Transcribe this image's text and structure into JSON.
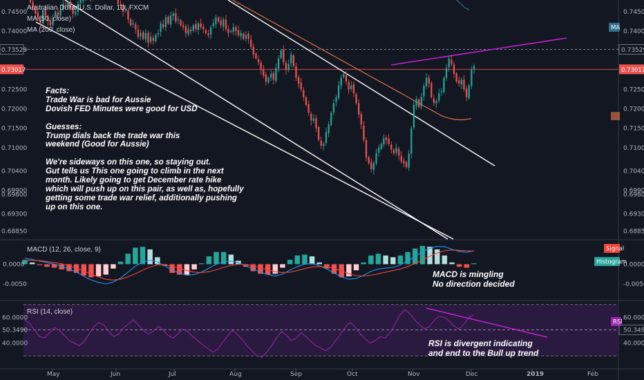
{
  "legend": {
    "title": "Australian Dollar/U.S. Dollar, 1D, FXCM",
    "ma50": "MA (50, close)",
    "ma200": "MA (200, close)"
  },
  "badges": {
    "ma": "MA",
    "signal": "Signal",
    "histogram": "Histogram",
    "rsi": "RSI"
  },
  "colors": {
    "background": "#131722",
    "up": "#26a69a",
    "down": "#ef5350",
    "ma50": "#f2784b",
    "ma200": "#2e6f8e",
    "trend": "#c521d6",
    "macd": "#2196f3",
    "signal": "#f44336",
    "rsi": "#9c27b0",
    "rsi_band": "#2a1a3f"
  },
  "annotations": {
    "main": "Facts:\nTrade War is bad for Aussie\nDovish FED Minutes were good for USD\n\nGuesses:\nTrump dials back the trade war this\nweekend (Good for Aussie)\n\nWe're sideways on this one, so staying out.\nGut tells us This one going to climb in the next\nmonth. Likely going to get December rate hike\nwhich will push up on this pair, as well as, hopefully\ngetting some trade war relief, additionally pushing\nup on this one.",
    "macd": "MACD is mingling\nNo direction decided",
    "rsi": "RSI is divergent indicating\nand end to the Bull up trend"
  },
  "chart_data": [
    {
      "type": "candlestick",
      "title": "Australian Dollar/U.S. Dollar, 1D, FXCM",
      "price_ticks": [
        "0.74500",
        "0.74000",
        "0.73529",
        "0.73017",
        "0.72500",
        "0.72000",
        "0.71500",
        "0.71000",
        "0.70400",
        "0.69900",
        "0.69800",
        "0.69300",
        "0.68850"
      ],
      "ylim": [
        0.6865,
        0.748
      ],
      "x_labels": [
        "May",
        "Jun",
        "Jul",
        "Aug",
        "Sep",
        "Oct",
        "Nov",
        "Dec",
        "2019",
        "Feb"
      ],
      "highlight_levels": {
        "dashed": 0.73529,
        "current": 0.73017
      },
      "close": [
        0.7475,
        0.746,
        0.7445,
        0.743,
        0.742,
        0.7455,
        0.744,
        0.7425,
        0.7415,
        0.7435,
        0.745,
        0.744,
        0.7455,
        0.747,
        0.7465,
        0.7475,
        0.746,
        0.7445,
        0.745,
        0.747,
        0.748,
        0.749,
        0.75,
        0.7495,
        0.7485,
        0.751,
        0.7505,
        0.752,
        0.7515,
        0.7505,
        0.752,
        0.751,
        0.7495,
        0.75,
        0.749,
        0.747,
        0.7465,
        0.745,
        0.7455,
        0.743,
        0.7415,
        0.742,
        0.7405,
        0.7385,
        0.7395,
        0.738,
        0.7395,
        0.737,
        0.7385,
        0.7375,
        0.739,
        0.7395,
        0.742,
        0.741,
        0.7435,
        0.742,
        0.744,
        0.7445,
        0.7425,
        0.743,
        0.7415,
        0.741,
        0.7395,
        0.7405,
        0.74,
        0.7415,
        0.7405,
        0.742,
        0.741,
        0.7405,
        0.7395,
        0.739,
        0.741,
        0.742,
        0.7435,
        0.7425,
        0.7415,
        0.743,
        0.7405,
        0.7395,
        0.74,
        0.741,
        0.74,
        0.739,
        0.7395,
        0.738,
        0.739,
        0.738,
        0.736,
        0.734,
        0.733,
        0.732,
        0.73,
        0.7285,
        0.727,
        0.728,
        0.729,
        0.7275,
        0.7305,
        0.733,
        0.735,
        0.732,
        0.73,
        0.7315,
        0.734,
        0.731,
        0.728,
        0.7265,
        0.725,
        0.723,
        0.721,
        0.719,
        0.717,
        0.7175,
        0.715,
        0.712,
        0.7105,
        0.711,
        0.714,
        0.716,
        0.719,
        0.7215,
        0.723,
        0.726,
        0.728,
        0.729,
        0.727,
        0.725,
        0.726,
        0.724,
        0.7215,
        0.7185,
        0.716,
        0.712,
        0.7075,
        0.706,
        0.7045,
        0.706,
        0.7085,
        0.71,
        0.711,
        0.7125,
        0.712,
        0.711,
        0.7095,
        0.7085,
        0.71,
        0.708,
        0.7065,
        0.706,
        0.705,
        0.7085,
        0.715,
        0.721,
        0.7225,
        0.7205,
        0.723,
        0.726,
        0.728,
        0.7265,
        0.723,
        0.7215,
        0.722,
        0.724,
        0.7245,
        0.728,
        0.7305,
        0.733,
        0.7315,
        0.729,
        0.727,
        0.7265,
        0.7275,
        0.725,
        0.723,
        0.726,
        0.73,
        0.731
      ],
      "ma50": [
        0.7535,
        0.753,
        0.7524,
        0.7518,
        0.7512,
        0.7506,
        0.75,
        0.7494,
        0.7488,
        0.7482,
        0.7476,
        0.747,
        0.7464,
        0.7458,
        0.7452,
        0.7446,
        0.744,
        0.7434,
        0.7428,
        0.7422,
        0.7416,
        0.741,
        0.7404,
        0.7398,
        0.7392,
        0.7386,
        0.738,
        0.7374,
        0.7368,
        0.7362,
        0.7356,
        0.735,
        0.7344,
        0.7338,
        0.7332,
        0.7326,
        0.732,
        0.7314,
        0.7308,
        0.7302,
        0.7296,
        0.729,
        0.7284,
        0.7278,
        0.7272,
        0.7266,
        0.726,
        0.7254,
        0.7248,
        0.7242,
        0.7236,
        0.723,
        0.7224,
        0.7218,
        0.7212,
        0.7206,
        0.72,
        0.7194,
        0.7188,
        0.7182,
        0.7178,
        0.7175,
        0.7173,
        0.7172,
        0.7172,
        0.7173,
        0.7175
      ],
      "ma200": [
        0.759,
        0.758,
        0.757,
        0.756,
        0.755,
        0.754,
        0.753,
        0.752,
        0.751,
        0.75,
        0.749,
        0.748,
        0.747,
        0.746,
        0.7455
      ]
    },
    {
      "type": "line",
      "title": "MACD (12, 26, close, 9)",
      "ticks": [
        "0.0000",
        "-0.0050"
      ],
      "ylim": [
        -0.009,
        0.006
      ],
      "series": [
        {
          "name": "MACD",
          "values": [
            0.0015,
            0.0012,
            0.0008,
            0.0004,
            0.0,
            -0.0005,
            -0.0012,
            -0.002,
            -0.003,
            -0.004,
            -0.0046,
            -0.005,
            -0.0045,
            -0.0035,
            -0.002,
            -0.0005,
            0.0005,
            0.001,
            0.0006,
            -0.0004,
            -0.0015,
            -0.0022,
            -0.0028,
            -0.0026,
            -0.002,
            -0.001,
            0.0,
            0.0006,
            0.0008,
            0.0004,
            -0.0004,
            -0.0012,
            -0.002,
            -0.0026,
            -0.003,
            -0.0025,
            -0.0015,
            -0.0006,
            0.0,
            0.0002,
            -0.0004,
            -0.0012,
            -0.0022,
            -0.0032,
            -0.0038,
            -0.0036,
            -0.0028,
            -0.0018,
            -0.0012,
            -0.001,
            -0.0008,
            -0.0002,
            0.0008,
            0.002,
            0.0032,
            0.004,
            0.0045,
            0.0044,
            0.0038,
            0.0032,
            0.003,
            0.0034
          ]
        },
        {
          "name": "Signal",
          "values": [
            0.001,
            0.001,
            0.0009,
            0.0007,
            0.0004,
            0.0001,
            -0.0004,
            -0.001,
            -0.0017,
            -0.0025,
            -0.0032,
            -0.0038,
            -0.004,
            -0.0038,
            -0.0032,
            -0.0024,
            -0.0015,
            -0.0007,
            -0.0002,
            -0.0002,
            -0.0005,
            -0.001,
            -0.0016,
            -0.002,
            -0.0021,
            -0.0019,
            -0.0014,
            -0.0008,
            -0.0003,
            0.0,
            -0.0001,
            -0.0004,
            -0.0009,
            -0.0014,
            -0.0019,
            -0.0021,
            -0.002,
            -0.0016,
            -0.0011,
            -0.0007,
            -0.0006,
            -0.0007,
            -0.0011,
            -0.0017,
            -0.0024,
            -0.0029,
            -0.003,
            -0.0028,
            -0.0024,
            -0.002,
            -0.0016,
            -0.0012,
            -0.0006,
            0.0002,
            0.0011,
            0.002,
            0.0028,
            0.0034,
            0.0036,
            0.0035,
            0.0034,
            0.0033
          ]
        }
      ]
    },
    {
      "type": "line",
      "title": "RSI (14, close)",
      "ticks": [
        "60.0000",
        "50.3490",
        "40.0000"
      ],
      "ylim": [
        22,
        72
      ],
      "series": [
        {
          "name": "RSI",
          "values": [
            58,
            55,
            50,
            45,
            44,
            48,
            52,
            50,
            46,
            42,
            40,
            38,
            41,
            47,
            53,
            56,
            54,
            49,
            45,
            47,
            52,
            55,
            58,
            54,
            50,
            47,
            49,
            53,
            50,
            46,
            44,
            47,
            51,
            49,
            45,
            42,
            39,
            36,
            33,
            35,
            40,
            45,
            50,
            47,
            43,
            38,
            34,
            30,
            29,
            33,
            38,
            44,
            49,
            46,
            42,
            44,
            48,
            45,
            41,
            38,
            36,
            34,
            37,
            42,
            47,
            53,
            56,
            52,
            47,
            43,
            40,
            42,
            45,
            44,
            48,
            55,
            62,
            66,
            63,
            58,
            54,
            51,
            53,
            58,
            61,
            60,
            57,
            53,
            51,
            55,
            60,
            62
          ]
        }
      ]
    }
  ]
}
